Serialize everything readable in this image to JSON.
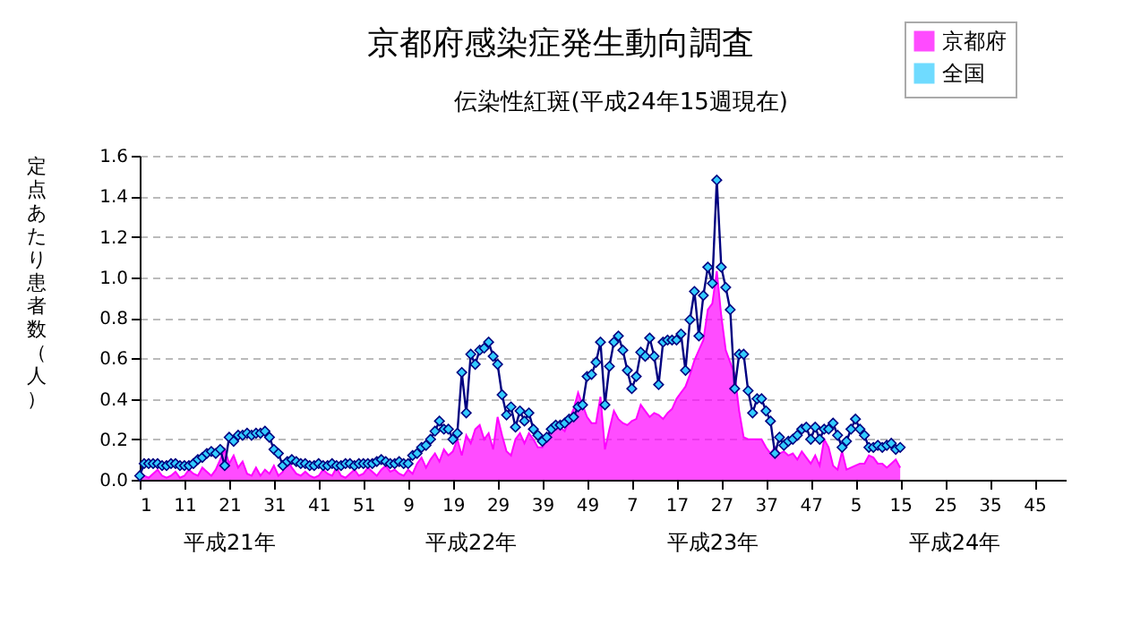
{
  "chart_data": {
    "type": "area",
    "title": "京都府感染症発生動向調査",
    "subtitle": "伝染性紅斑(平成24年15週現在)",
    "ylabel": "定点あたり患者数（人）",
    "categories": [
      "1",
      null,
      null,
      null,
      null,
      null,
      null,
      null,
      null,
      null,
      "11",
      null,
      null,
      null,
      null,
      null,
      null,
      null,
      null,
      null,
      "21",
      null,
      null,
      null,
      null,
      null,
      null,
      null,
      null,
      null,
      "31",
      null,
      null,
      null,
      null,
      null,
      null,
      null,
      null,
      null,
      "41",
      null,
      null,
      null,
      null,
      null,
      null,
      null,
      null,
      null,
      "51",
      null,
      null,
      null,
      null,
      null,
      null,
      null,
      null,
      null,
      "9",
      null,
      null,
      null,
      null,
      null,
      null,
      null,
      null,
      null,
      "19",
      null,
      null,
      null,
      null,
      null,
      null,
      null,
      null,
      null,
      "29",
      null,
      null,
      null,
      null,
      null,
      null,
      null,
      null,
      null,
      "39",
      null,
      null,
      null,
      null,
      null,
      null,
      null,
      null,
      null,
      "49",
      null,
      null,
      null,
      null,
      null,
      null,
      null,
      null,
      null,
      "7",
      null,
      null,
      null,
      null,
      null,
      null,
      null,
      null,
      null,
      "17",
      null,
      null,
      null,
      null,
      null,
      null,
      null,
      null,
      null,
      "27",
      null,
      null,
      null,
      null,
      null,
      null,
      null,
      null,
      null,
      "37",
      null,
      null,
      null,
      null,
      null,
      null,
      null,
      null,
      null,
      "47",
      null,
      null,
      null,
      null,
      null,
      null,
      null,
      null,
      null,
      "5",
      null,
      null,
      null,
      null,
      null,
      null,
      null,
      null,
      null,
      "15",
      null,
      null,
      null,
      null,
      null,
      null,
      null,
      null,
      null,
      "25",
      null,
      null,
      null,
      null,
      null,
      null,
      null,
      null,
      null,
      "35",
      null,
      null,
      null,
      null,
      null,
      null,
      null,
      null,
      null,
      "45",
      null,
      null,
      null,
      null,
      null,
      null,
      null
    ],
    "series": [
      {
        "name": "京都府",
        "color": "#ff00ff",
        "values": [
          0.01,
          0.02,
          0.01,
          0.03,
          0.05,
          0.02,
          0.01,
          0.02,
          0.04,
          0.01,
          0.02,
          0.05,
          0.03,
          0.02,
          0.06,
          0.04,
          0.02,
          0.05,
          0.1,
          0.15,
          0.08,
          0.12,
          0.06,
          0.09,
          0.03,
          0.02,
          0.06,
          0.02,
          0.05,
          0.03,
          0.07,
          0.02,
          0.04,
          0.1,
          0.06,
          0.03,
          0.02,
          0.04,
          0.02,
          0.01,
          0.02,
          0.05,
          0.03,
          0.02,
          0.06,
          0.02,
          0.01,
          0.03,
          0.05,
          0.02,
          0.03,
          0.06,
          0.04,
          0.02,
          0.05,
          0.07,
          0.04,
          0.05,
          0.03,
          0.02,
          0.05,
          0.03,
          0.08,
          0.11,
          0.06,
          0.1,
          0.13,
          0.09,
          0.15,
          0.12,
          0.14,
          0.2,
          0.12,
          0.22,
          0.18,
          0.25,
          0.27,
          0.2,
          0.23,
          0.15,
          0.31,
          0.22,
          0.14,
          0.12,
          0.2,
          0.23,
          0.18,
          0.23,
          0.2,
          0.16,
          0.16,
          0.2,
          0.23,
          0.25,
          0.26,
          0.24,
          0.3,
          0.35,
          0.43,
          0.37,
          0.31,
          0.28,
          0.28,
          0.41,
          0.15,
          0.25,
          0.34,
          0.3,
          0.28,
          0.27,
          0.29,
          0.3,
          0.37,
          0.34,
          0.31,
          0.33,
          0.32,
          0.3,
          0.33,
          0.35,
          0.4,
          0.43,
          0.46,
          0.52,
          0.59,
          0.64,
          0.69,
          0.84,
          0.87,
          1.03,
          0.81,
          0.64,
          0.58,
          0.52,
          0.34,
          0.21,
          0.2,
          0.2,
          0.2,
          0.2,
          0.16,
          0.13,
          0.16,
          0.13,
          0.14,
          0.12,
          0.13,
          0.1,
          0.14,
          0.11,
          0.08,
          0.12,
          0.07,
          0.2,
          0.16,
          0.07,
          0.05,
          0.14,
          0.05,
          0.06,
          0.07,
          0.08,
          0.08,
          0.12,
          0.11,
          0.08,
          0.08,
          0.06,
          0.08,
          0.1,
          0.06,
          null,
          null,
          null,
          null,
          null,
          null,
          null,
          null,
          null,
          null,
          null,
          null,
          null,
          null,
          null,
          null,
          null,
          null,
          null,
          null,
          null,
          null,
          null,
          null,
          null,
          null,
          null,
          null,
          null,
          null,
          null,
          null,
          null,
          null,
          null,
          null,
          null
        ]
      },
      {
        "name": "全国",
        "type": "line",
        "color": "#33ccff",
        "marker": "diamond",
        "values": [
          0.02,
          0.08,
          0.08,
          0.08,
          0.08,
          0.07,
          0.07,
          0.08,
          0.08,
          0.07,
          0.07,
          0.07,
          0.08,
          0.1,
          0.11,
          0.13,
          0.14,
          0.13,
          0.15,
          0.07,
          0.21,
          0.19,
          0.22,
          0.22,
          0.23,
          0.22,
          0.23,
          0.23,
          0.24,
          0.21,
          0.15,
          0.13,
          0.07,
          0.09,
          0.1,
          0.09,
          0.08,
          0.08,
          0.07,
          0.07,
          0.08,
          0.07,
          0.07,
          0.08,
          0.07,
          0.07,
          0.08,
          0.08,
          0.07,
          0.08,
          0.08,
          0.08,
          0.08,
          0.09,
          0.1,
          0.09,
          0.08,
          0.08,
          0.09,
          0.08,
          0.08,
          0.12,
          0.13,
          0.16,
          0.17,
          0.2,
          0.24,
          0.29,
          0.25,
          0.25,
          0.2,
          0.23,
          0.53,
          0.33,
          0.62,
          0.57,
          0.64,
          0.65,
          0.68,
          0.61,
          0.57,
          0.42,
          0.32,
          0.36,
          0.26,
          0.34,
          0.29,
          0.33,
          0.25,
          0.22,
          0.19,
          0.21,
          0.25,
          0.27,
          0.27,
          0.28,
          0.3,
          0.31,
          0.36,
          0.37,
          0.51,
          0.52,
          0.58,
          0.68,
          0.37,
          0.56,
          0.68,
          0.71,
          0.64,
          0.54,
          0.45,
          0.51,
          0.63,
          0.61,
          0.7,
          0.61,
          0.47,
          0.68,
          0.69,
          0.69,
          0.69,
          0.72,
          0.54,
          0.79,
          0.93,
          0.71,
          0.91,
          1.05,
          0.97,
          1.48,
          1.05,
          0.95,
          0.84,
          0.45,
          0.62,
          0.62,
          0.44,
          0.33,
          0.4,
          0.4,
          0.34,
          0.29,
          0.13,
          0.21,
          0.17,
          0.19,
          0.2,
          0.22,
          0.25,
          0.26,
          0.2,
          0.26,
          0.2,
          0.25,
          0.25,
          0.28,
          0.22,
          0.16,
          0.19,
          0.25,
          0.3,
          0.25,
          0.22,
          0.16,
          0.16,
          0.17,
          0.16,
          0.17,
          0.18,
          0.15,
          0.16,
          null,
          null,
          null,
          null,
          null,
          null,
          null,
          null,
          null,
          null,
          null,
          null,
          null,
          null,
          null,
          null,
          null,
          null,
          null,
          null,
          null,
          null,
          null,
          null,
          null,
          null,
          null,
          null,
          null,
          null,
          null,
          null,
          null,
          null,
          null,
          null,
          null
        ]
      }
    ],
    "annotations": [
      "平成21年",
      "平成22年",
      "平成23年",
      "平成24年"
    ],
    "ylim": [
      0,
      1.6
    ],
    "yticks": [
      {
        "value": 0,
        "label": "0.0"
      },
      0.2,
      0.4,
      0.6,
      0.8,
      {
        "value": 1,
        "label": "1.0"
      },
      1.2,
      1.4,
      1.6
    ],
    "grid": "y",
    "legend": "top right"
  }
}
